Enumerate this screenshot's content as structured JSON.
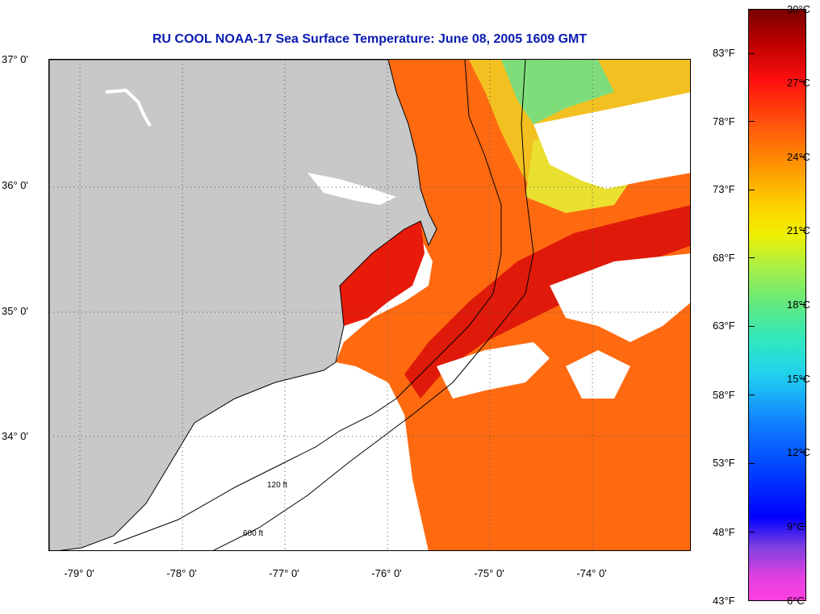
{
  "title": "RU COOL  NOAA-17  Sea Surface Temperature:  June 08, 2005 1609 GMT",
  "lat_labels": [
    "37° 0'",
    "36° 0'",
    "35° 0'",
    "34° 0'"
  ],
  "lon_labels": [
    "-79° 0'",
    "-78° 0'",
    "-77° 0'",
    "-76° 0'",
    "-75° 0'",
    "-74° 0'"
  ],
  "fahrenheit_ticks": [
    "83°F",
    "78°F",
    "73°F",
    "68°F",
    "63°F",
    "58°F",
    "53°F",
    "48°F",
    "43°F"
  ],
  "celsius_ticks": [
    "30°C",
    "27°C",
    "24°C",
    "21°C",
    "18°C",
    "15°C",
    "12°C",
    "9°C",
    "6°C"
  ],
  "contour_labels": [
    "120 ft",
    "600 ft"
  ],
  "colors": {
    "title": "#0b1bb0",
    "land": "#c8c8c8",
    "cloud_no_data": "#ffffff",
    "warm_water": "#ff6a10",
    "gulf_stream": "#e81808",
    "shelf_cool": "#f0d020"
  }
}
